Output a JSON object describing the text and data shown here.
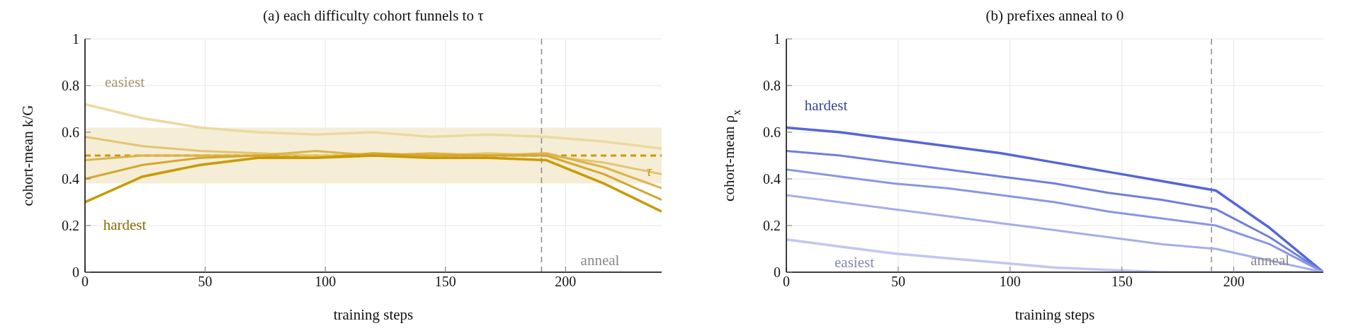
{
  "chart_data": [
    {
      "type": "line",
      "title": "(a) each difficulty cohort funnels to τ",
      "xlabel": "training steps",
      "ylabel": "cohort-mean k/G",
      "x": [
        0,
        24,
        48,
        72,
        96,
        120,
        144,
        168,
        192,
        216,
        240
      ],
      "series": [
        {
          "name": "easiest",
          "color": "#ecd9a0",
          "values": [
            0.72,
            0.66,
            0.62,
            0.6,
            0.59,
            0.6,
            0.58,
            0.59,
            0.58,
            0.56,
            0.53
          ]
        },
        {
          "color": "#e3c470",
          "values": [
            0.58,
            0.54,
            0.52,
            0.51,
            0.5,
            0.5,
            0.5,
            0.51,
            0.5,
            0.47,
            0.42
          ]
        },
        {
          "color": "#dbb44a",
          "values": [
            0.48,
            0.5,
            0.5,
            0.5,
            0.52,
            0.5,
            0.51,
            0.5,
            0.51,
            0.45,
            0.36
          ]
        },
        {
          "color": "#d4a72c",
          "values": [
            0.4,
            0.46,
            0.49,
            0.5,
            0.49,
            0.51,
            0.5,
            0.5,
            0.5,
            0.42,
            0.31
          ]
        },
        {
          "name": "hardest",
          "color": "#c99a00",
          "values": [
            0.3,
            0.41,
            0.46,
            0.49,
            0.49,
            0.5,
            0.49,
            0.49,
            0.48,
            0.38,
            0.26
          ]
        }
      ],
      "xlim": [
        0,
        240
      ],
      "xticks": [
        0,
        50,
        100,
        150,
        200
      ],
      "ylim": [
        0,
        1
      ],
      "yticks": [
        0,
        0.2,
        0.4,
        0.6,
        0.8,
        1
      ],
      "grid": true,
      "marker": "none",
      "line_style": "solid",
      "ref_lines": [
        {
          "axis": "y",
          "value": 0.5,
          "label": "τ",
          "color": "#c99a00",
          "line_style": "dashed"
        },
        {
          "axis": "x",
          "value": 190,
          "label": "anneal",
          "color": "#888888",
          "line_style": "dashed"
        }
      ],
      "bands": [
        {
          "axis": "y",
          "from": 0.38,
          "to": 0.62,
          "color": "#f5edd6"
        }
      ]
    },
    {
      "type": "line",
      "title": "(b) prefixes anneal to 0",
      "xlabel": "training steps",
      "ylabel": "cohort-mean ρ$_{x}$",
      "x": [
        0,
        24,
        48,
        72,
        96,
        120,
        144,
        168,
        192,
        216,
        240
      ],
      "series": [
        {
          "name": "hardest",
          "color": "#5566d6",
          "values": [
            0.62,
            0.6,
            0.57,
            0.54,
            0.51,
            0.47,
            0.43,
            0.39,
            0.35,
            0.19,
            0
          ]
        },
        {
          "color": "#6f7edc",
          "values": [
            0.52,
            0.5,
            0.47,
            0.44,
            0.41,
            0.38,
            0.34,
            0.31,
            0.27,
            0.15,
            0
          ]
        },
        {
          "color": "#8a96e2",
          "values": [
            0.44,
            0.41,
            0.38,
            0.36,
            0.33,
            0.3,
            0.26,
            0.23,
            0.2,
            0.12,
            0
          ]
        },
        {
          "color": "#a5aee9",
          "values": [
            0.33,
            0.3,
            0.27,
            0.24,
            0.21,
            0.18,
            0.15,
            0.12,
            0.1,
            0.05,
            0
          ]
        },
        {
          "name": "easiest",
          "color": "#c0c7f0",
          "values": [
            0.14,
            0.11,
            0.08,
            0.06,
            0.04,
            0.02,
            0.01,
            0,
            0,
            0,
            0
          ]
        }
      ],
      "xlim": [
        0,
        240
      ],
      "xticks": [
        0,
        50,
        100,
        150,
        200
      ],
      "ylim": [
        0,
        1
      ],
      "yticks": [
        0,
        0.2,
        0.4,
        0.6,
        0.8,
        1
      ],
      "grid": true,
      "marker": "none",
      "line_style": "solid",
      "ref_lines": [
        {
          "axis": "x",
          "value": 190,
          "label": "anneal",
          "color": "#888888",
          "line_style": "dashed"
        }
      ]
    }
  ]
}
